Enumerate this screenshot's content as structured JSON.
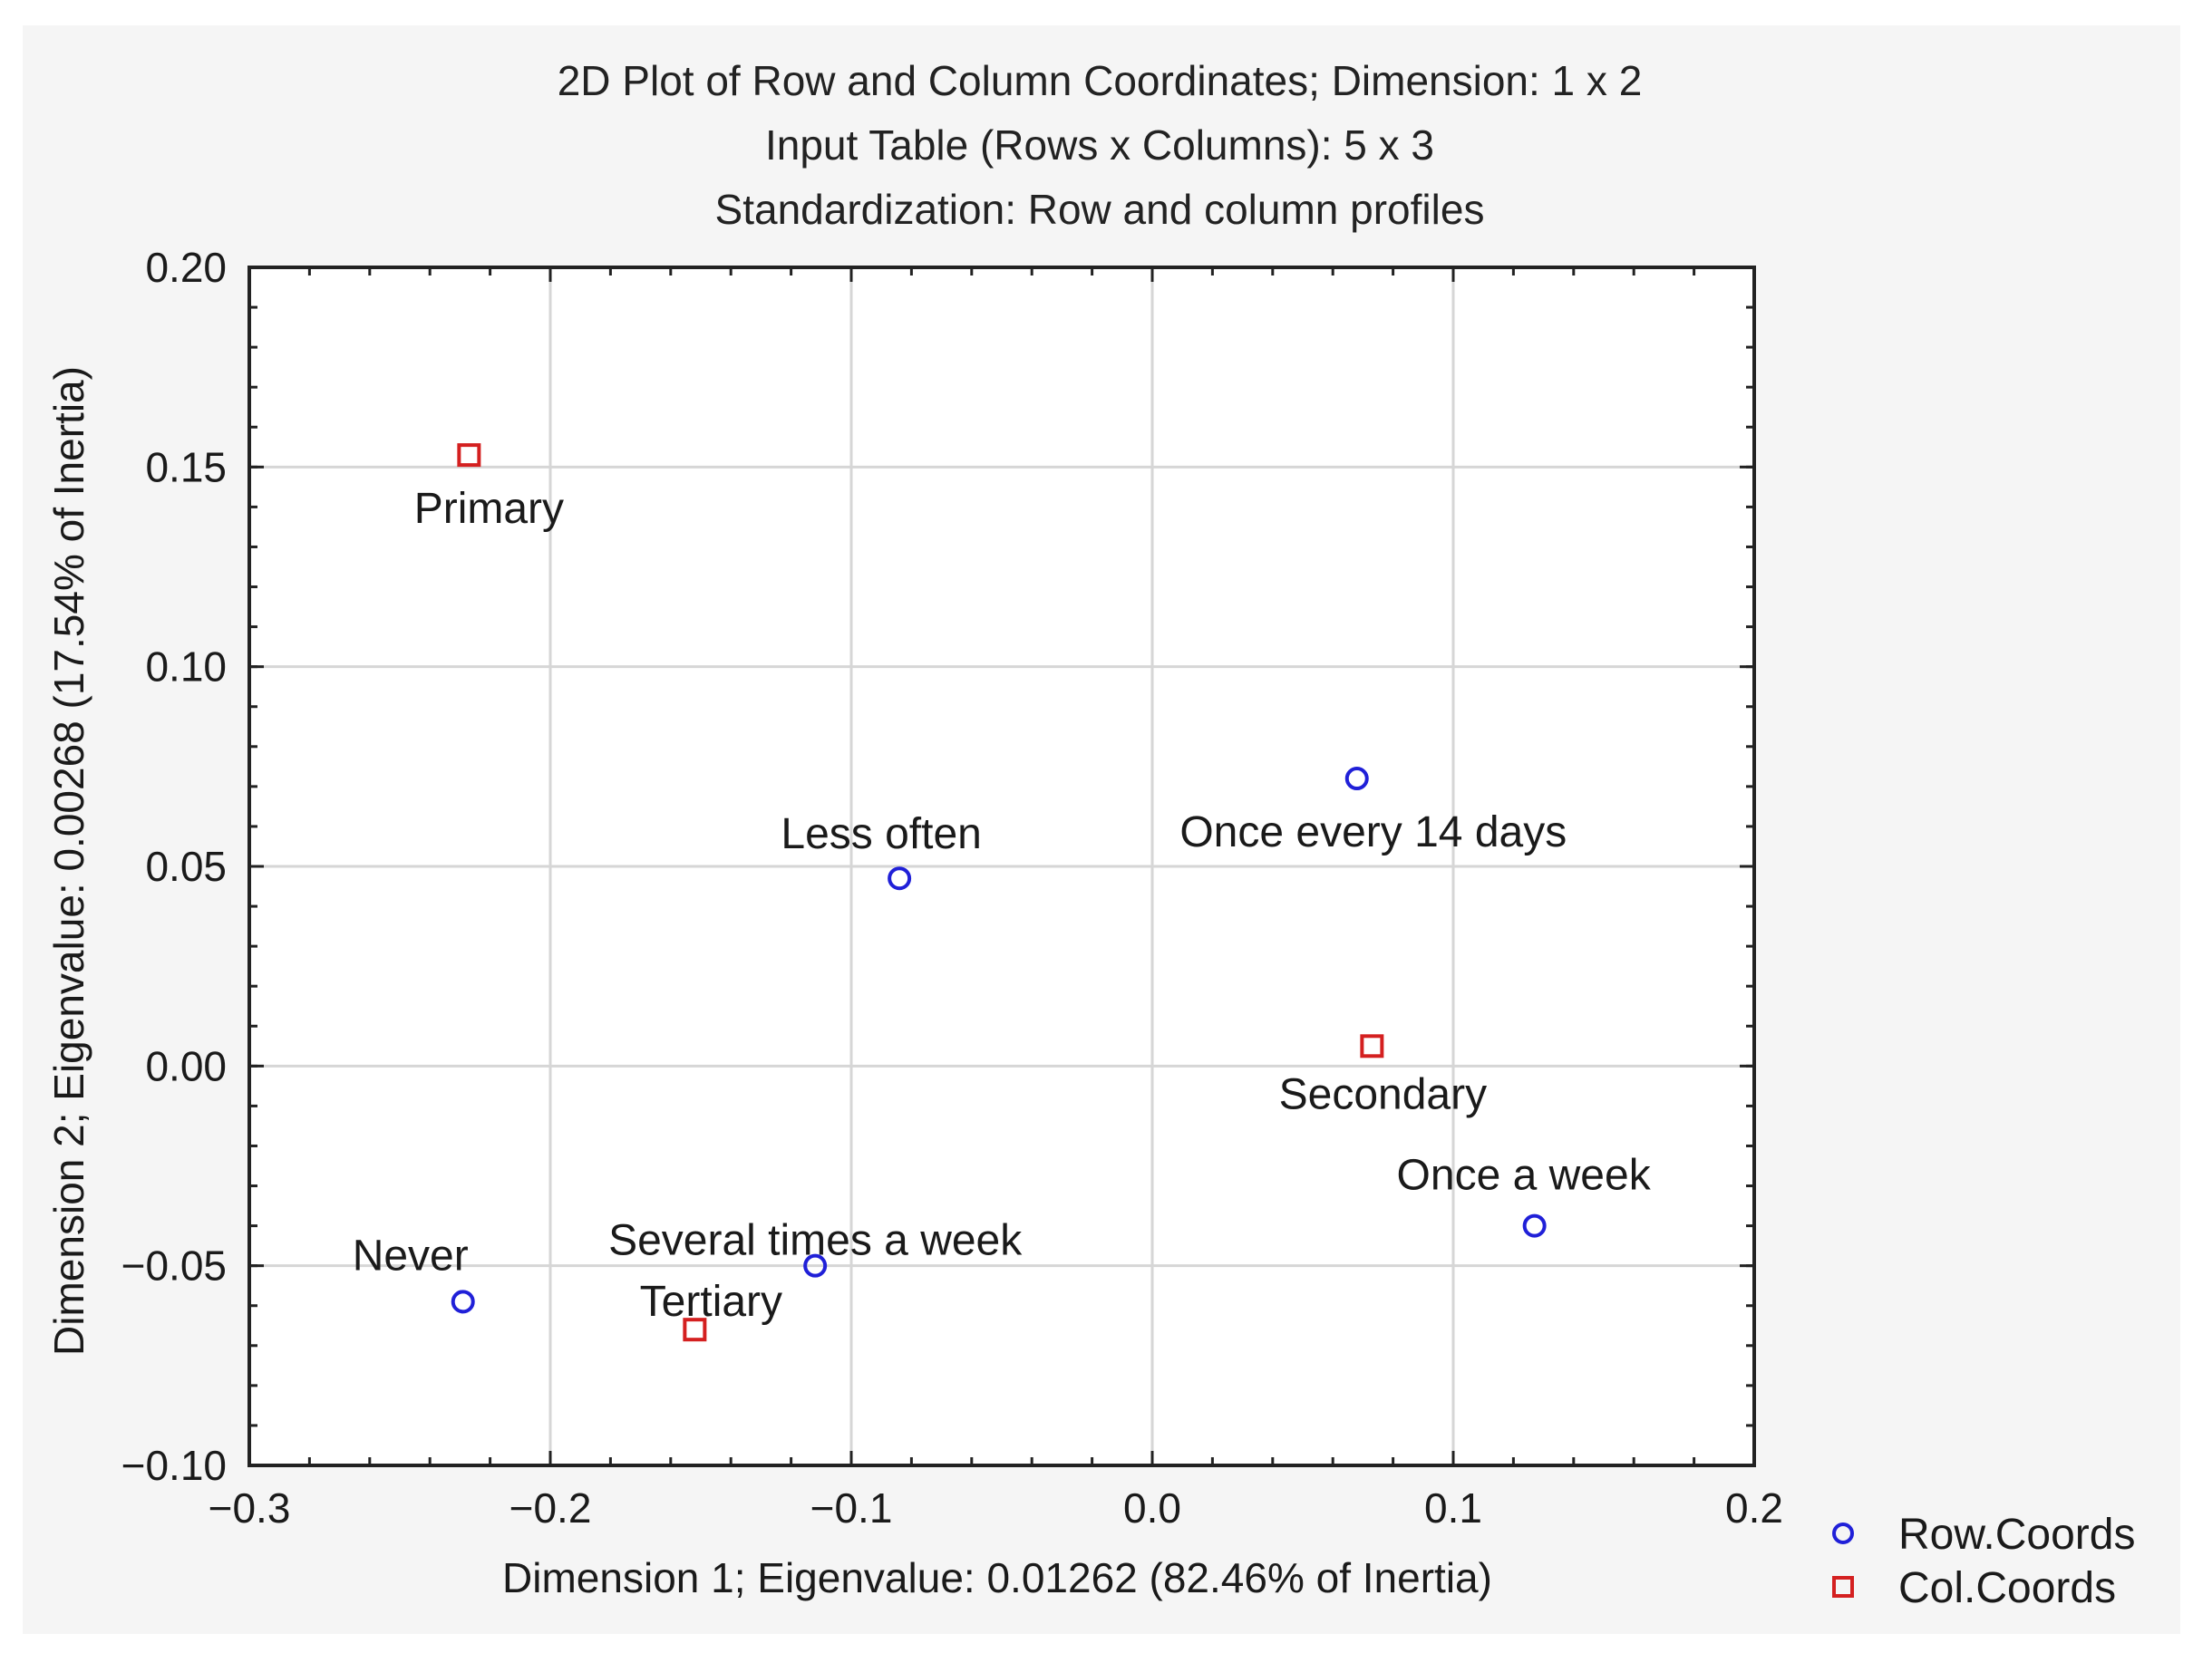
{
  "chart_data": {
    "type": "scatter",
    "title": [
      "2D Plot of Row and Column Coordinates; Dimension:  1 x  2",
      "Input Table (Rows x Columns): 5 x 3",
      "Standardization: Row and column profiles"
    ],
    "xlabel": "Dimension 1; Eigenvalue: 0.01262 (82.46% of Inertia)",
    "ylabel": "Dimension 2; Eigenvalue: 0.00268 (17.54% of Inertia)",
    "xlim": [
      -0.3,
      0.2
    ],
    "ylim": [
      -0.1,
      0.2
    ],
    "x_ticks": [
      -0.3,
      -0.2,
      -0.1,
      0.0,
      0.1,
      0.2
    ],
    "x_tick_labels": [
      "−0.3",
      "−0.2",
      "−0.1",
      "0.0",
      "0.1",
      "0.2"
    ],
    "y_ticks": [
      -0.1,
      -0.05,
      0.0,
      0.05,
      0.1,
      0.15,
      0.2
    ],
    "y_tick_labels": [
      "−0.10",
      "−0.05",
      "0.00",
      "0.05",
      "0.10",
      "0.15",
      "0.20"
    ],
    "grid": true,
    "legend_position": "bottom-right, outside plot",
    "series": [
      {
        "name": "Row.Coords",
        "marker": "circle",
        "color": "#2020d8",
        "points": [
          {
            "label": "Never",
            "x": -0.229,
            "y": -0.059
          },
          {
            "label": "Several times a week",
            "x": -0.112,
            "y": -0.05
          },
          {
            "label": "Less often",
            "x": -0.084,
            "y": 0.047
          },
          {
            "label": "Once every 14 days",
            "x": 0.068,
            "y": 0.072
          },
          {
            "label": "Once a week",
            "x": 0.127,
            "y": -0.04
          }
        ]
      },
      {
        "name": "Col.Coords",
        "marker": "square",
        "color": "#d42020",
        "points": [
          {
            "label": "Primary",
            "x": -0.227,
            "y": 0.153
          },
          {
            "label": "Tertiary",
            "x": -0.152,
            "y": -0.066
          },
          {
            "label": "Secondary",
            "x": 0.073,
            "y": 0.005
          }
        ]
      }
    ]
  },
  "colors": {
    "page_background": "#f5f5f5",
    "plot_background": "#ffffff",
    "grid": "#d6d6d6",
    "axis": "#222222"
  }
}
